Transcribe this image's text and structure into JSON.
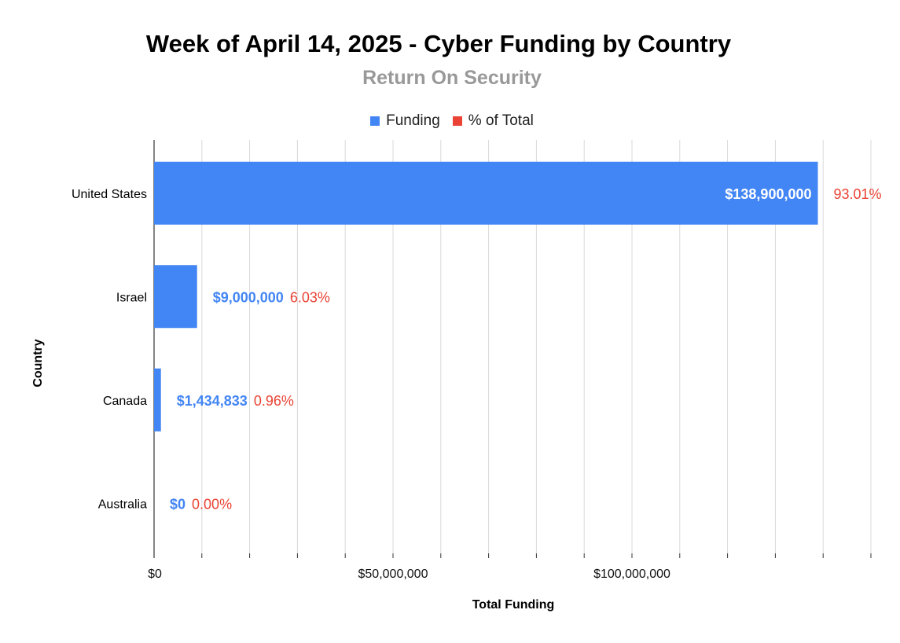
{
  "chart_data": {
    "type": "bar",
    "orientation": "horizontal",
    "title": "Week of April 14, 2025 - Cyber Funding by Country",
    "subtitle": "Return On Security",
    "xlabel": "Total Funding",
    "ylabel": "Country",
    "legend_placement": "top",
    "grid": true,
    "categories": [
      "United States",
      "Israel",
      "Canada",
      "Australia"
    ],
    "series": [
      {
        "name": "Funding",
        "color": "#4285f4",
        "values": [
          138900000,
          9000000,
          1434833,
          0
        ],
        "labels": [
          "$138,900,000",
          "$9,000,000",
          "$1,434,833",
          "$0"
        ]
      },
      {
        "name": "% of Total",
        "color": "#ea4335",
        "values": [
          93.01,
          6.03,
          0.96,
          0.0
        ],
        "labels": [
          "93.01%",
          "6.03%",
          "0.96%",
          "0.00%"
        ]
      }
    ],
    "xlim": [
      0,
      150000000
    ],
    "xticks": [
      0,
      50000000,
      100000000
    ],
    "xtick_labels": [
      "$0",
      "$50,000,000",
      "$100,000,000"
    ]
  }
}
